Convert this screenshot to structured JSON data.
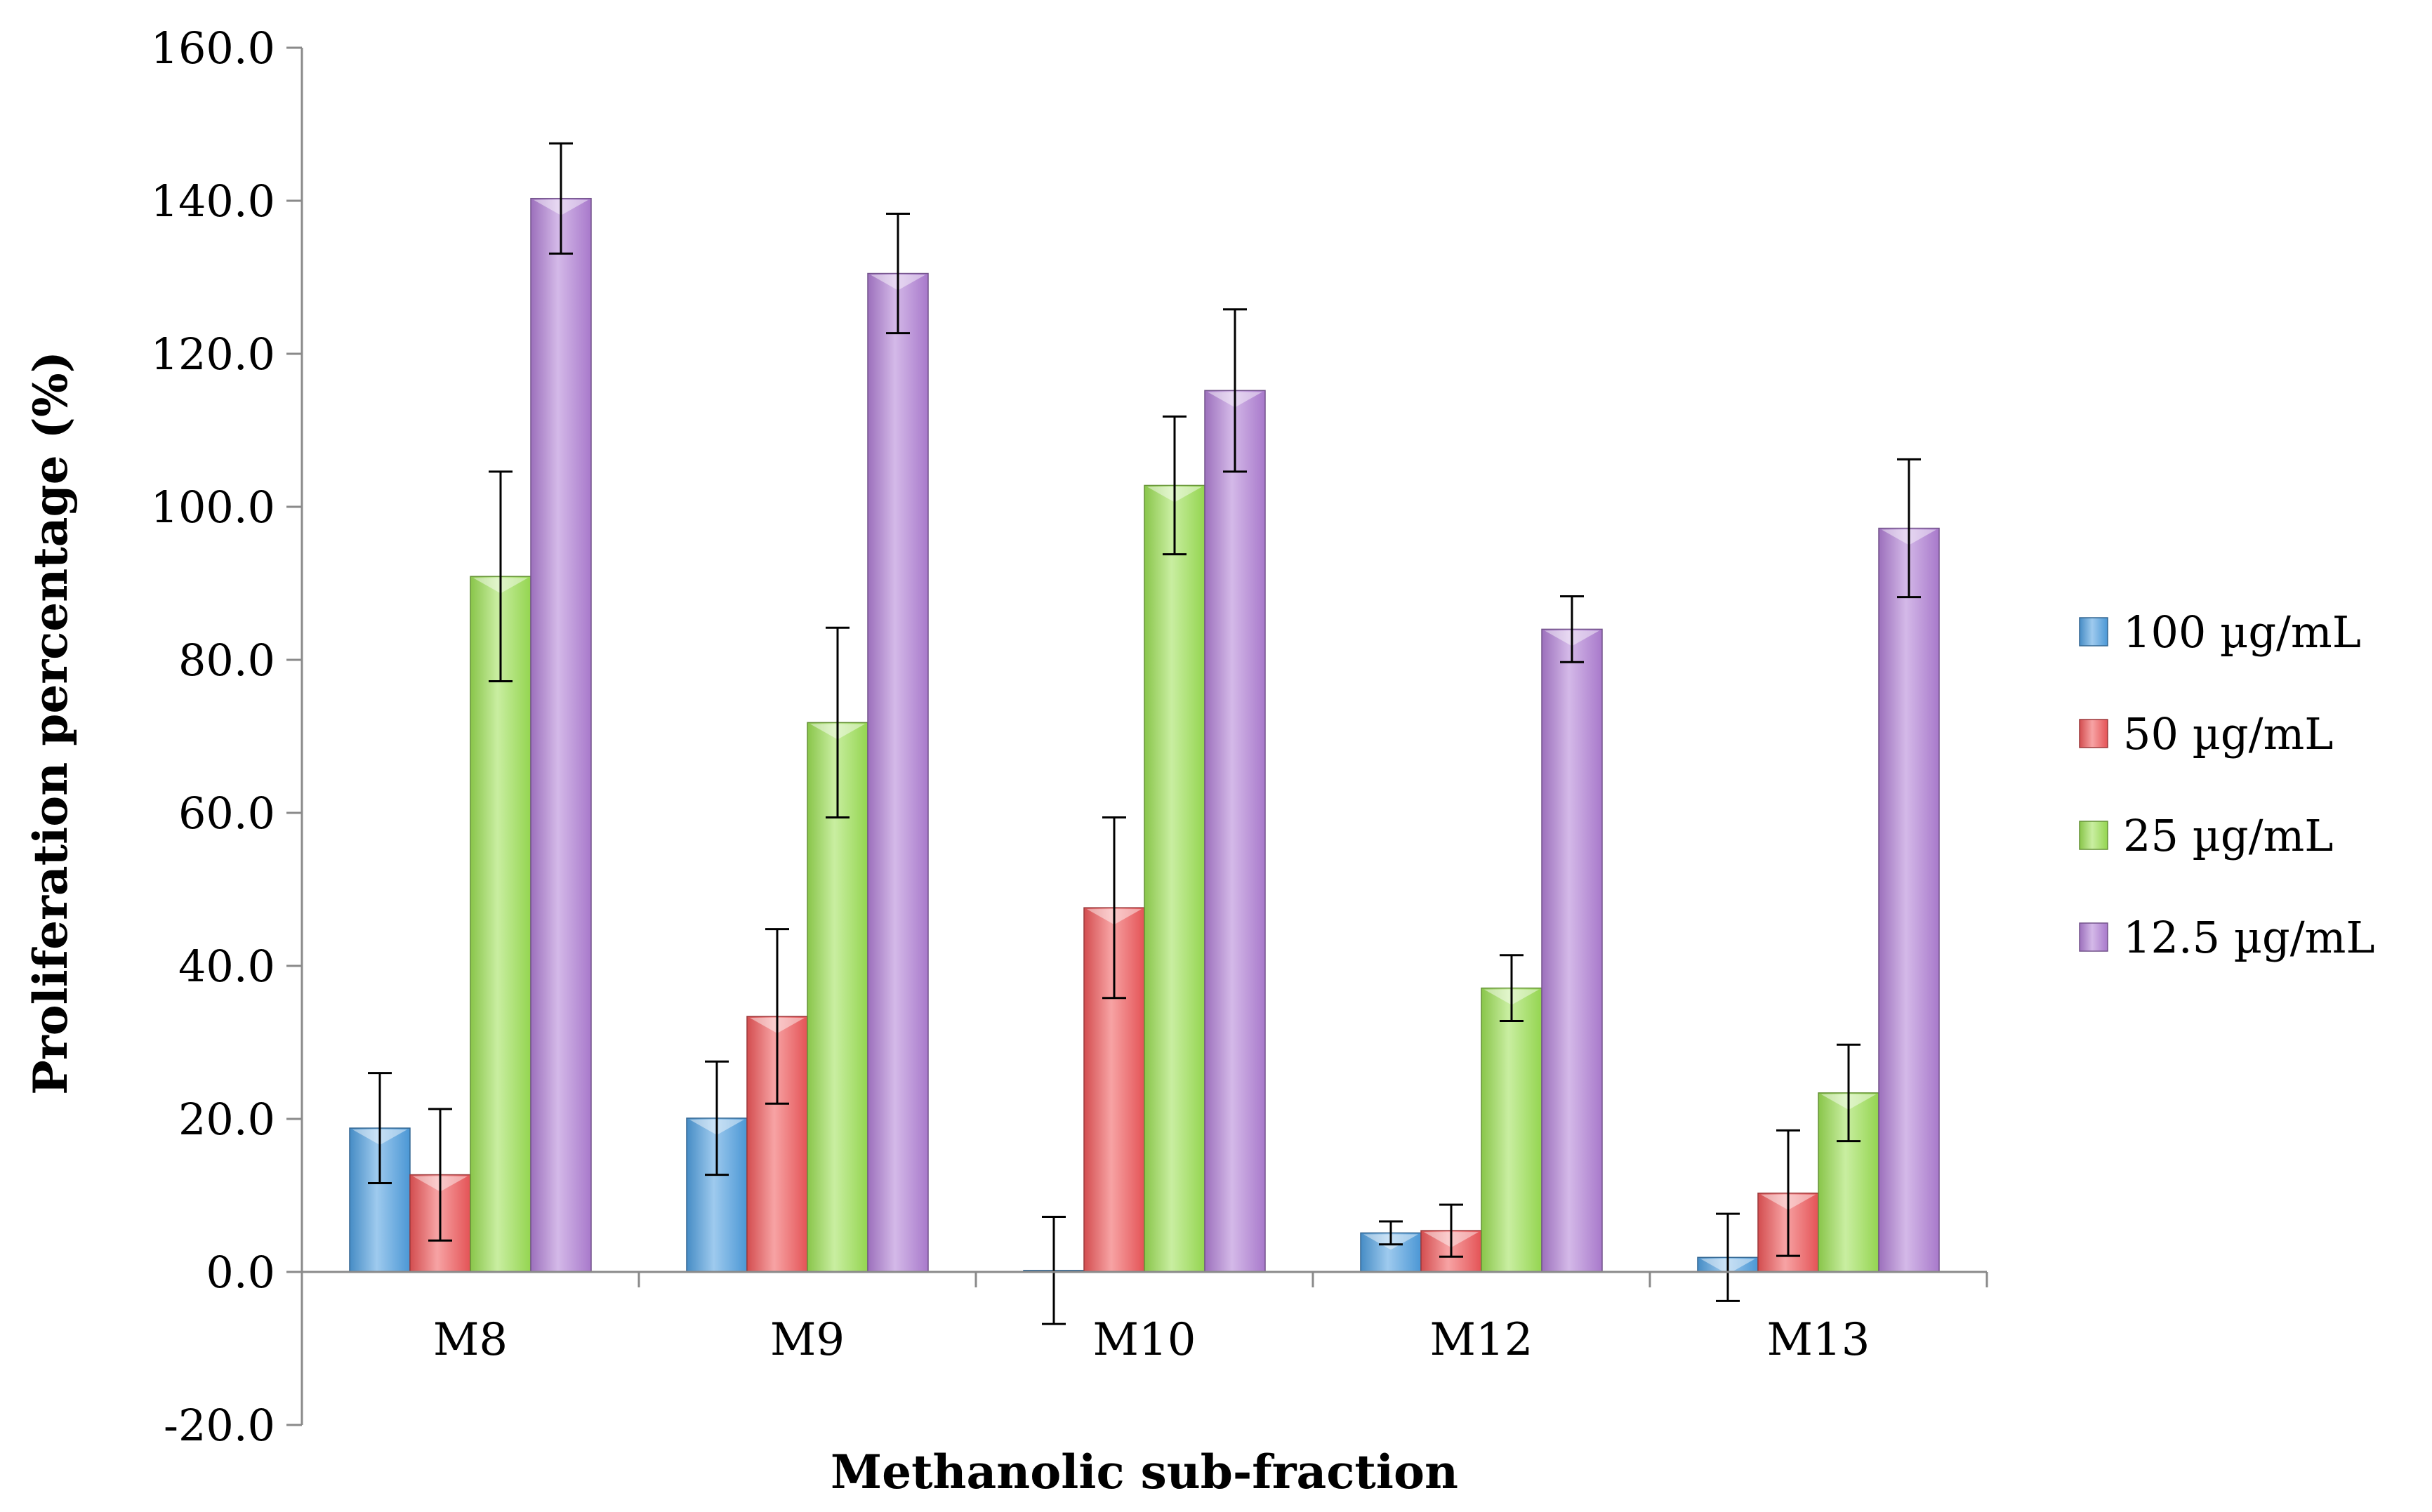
{
  "chart_data": {
    "type": "bar",
    "xlabel": "Methanolic sub-fraction",
    "ylabel": "Proliferation percentage (%)",
    "ylim": [
      -20,
      160
    ],
    "yticks": [
      -20,
      0,
      20,
      40,
      60,
      80,
      100,
      120,
      140,
      160
    ],
    "ytick_labels": [
      "-20.0",
      "0.0",
      "20.0",
      "40.0",
      "60.0",
      "80.0",
      "100.0",
      "120.0",
      "140.0",
      "160.0"
    ],
    "grid": false,
    "legend_position": "right",
    "error_bars": true,
    "categories": [
      "M8",
      "M9",
      "M10",
      "M12",
      "M13"
    ],
    "series": [
      {
        "name": "100 µg/mL",
        "color": "#4F9FE0",
        "values": [
          18.8,
          20.1,
          0.2,
          5.1,
          1.9
        ],
        "errors": [
          7.2,
          7.4,
          7.0,
          1.5,
          5.7
        ]
      },
      {
        "name": "50 µg/mL",
        "color": "#F0575A",
        "values": [
          12.7,
          33.4,
          47.6,
          5.4,
          10.3
        ],
        "errors": [
          8.6,
          11.4,
          11.8,
          3.4,
          8.2
        ]
      },
      {
        "name": "25 µg/mL",
        "color": "#9CE054",
        "values": [
          90.9,
          71.8,
          102.8,
          37.1,
          23.4
        ],
        "errors": [
          13.7,
          12.4,
          9.0,
          4.3,
          6.3
        ]
      },
      {
        "name": "12.5 µg/mL",
        "color": "#B17FD6",
        "values": [
          140.3,
          130.5,
          115.2,
          84.0,
          97.2
        ],
        "errors": [
          7.2,
          7.8,
          10.6,
          4.3,
          9.0
        ]
      }
    ]
  }
}
